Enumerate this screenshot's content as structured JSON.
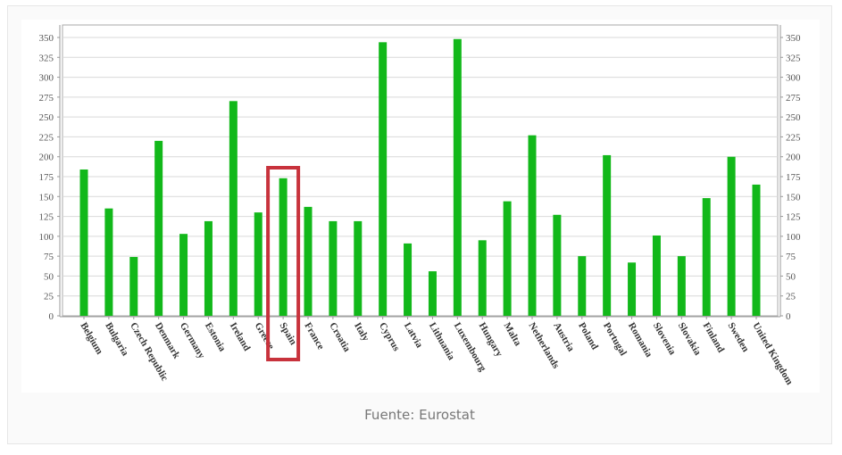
{
  "caption": "Fuente: Eurostat",
  "colors": {
    "bar": "#12b81a",
    "highlight": "#c8323c",
    "grid": "#d9d9d9",
    "axis": "#999999",
    "tick_text": "#555555"
  },
  "highlight": {
    "category": "Spain"
  },
  "chart_data": {
    "type": "bar",
    "title": "",
    "xlabel": "",
    "ylabel": "",
    "ylim": [
      0,
      350
    ],
    "yticks": [
      0,
      25,
      50,
      75,
      100,
      125,
      150,
      175,
      200,
      225,
      250,
      275,
      300,
      325,
      350
    ],
    "grid": true,
    "legend": null,
    "secondary_y_axis": true,
    "categories": [
      "Belgium",
      "Bulgaria",
      "Czech Republic",
      "Denmark",
      "Germany",
      "Estonia",
      "Ireland",
      "Greece",
      "Spain",
      "France",
      "Croatia",
      "Italy",
      "Cyprus",
      "Latvia",
      "Lithuania",
      "Luxembourg",
      "Hungary",
      "Malta",
      "Netherlands",
      "Austria",
      "Poland",
      "Portugal",
      "Romania",
      "Slovenia",
      "Slovakia",
      "Finland",
      "Sweden",
      "United Kingdom"
    ],
    "values": [
      184,
      135,
      74,
      220,
      103,
      119,
      270,
      130,
      173,
      137,
      119,
      119,
      344,
      91,
      56,
      348,
      95,
      144,
      227,
      127,
      75,
      202,
      67,
      101,
      75,
      148,
      200,
      165
    ],
    "annotations": [
      {
        "type": "box",
        "target": "Spain",
        "color": "#c8323c"
      }
    ]
  }
}
